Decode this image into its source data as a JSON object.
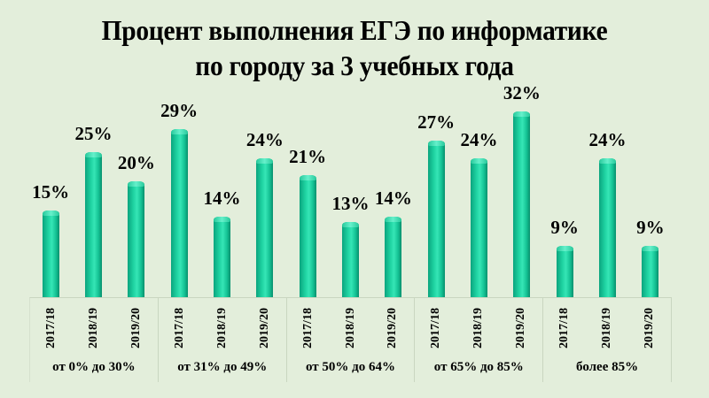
{
  "title": {
    "line1": "Процент выполнения ЕГЭ по информатике",
    "line2": "по городу за 3 учебных года"
  },
  "colors": {
    "background": "#e3eedb",
    "bar": "#1fd3a2",
    "text": "#000000"
  },
  "groups": [
    {
      "label": "от 0% до 30%",
      "years": [
        "2017/18",
        "2018/19",
        "2019/20"
      ],
      "values": [
        "15%",
        "25%",
        "20%"
      ]
    },
    {
      "label": "от 31% до 49%",
      "years": [
        "2017/18",
        "2018/19",
        "2019/20"
      ],
      "values": [
        "29%",
        "14%",
        "24%"
      ]
    },
    {
      "label": "от 50% до 64%",
      "years": [
        "2017/18",
        "2018/19",
        "2019/20"
      ],
      "values": [
        "21%",
        "13%",
        "14%"
      ]
    },
    {
      "label": "от 65% до 85%",
      "years": [
        "2017/18",
        "2018/19",
        "2019/20"
      ],
      "values": [
        "27%",
        "24%",
        "32%"
      ]
    },
    {
      "label": "более 85%",
      "years": [
        "2017/18",
        "2018/19",
        "2019/20"
      ],
      "values": [
        "9%",
        "24%",
        "9%"
      ]
    }
  ],
  "chart_data": {
    "type": "bar",
    "title": "Процент выполнения ЕГЭ по информатике по городу за 3 учебных года",
    "xlabel": "",
    "ylabel": "",
    "categories": [
      "от 0% до 30%",
      "от 31% до 49%",
      "от 50% до 64%",
      "от 65% до 85%",
      "более 85%"
    ],
    "subcategories": [
      "2017/18",
      "2018/19",
      "2019/20"
    ],
    "series": [
      {
        "name": "2017/18",
        "values": [
          15,
          29,
          21,
          27,
          9
        ]
      },
      {
        "name": "2018/19",
        "values": [
          25,
          14,
          13,
          24,
          24
        ]
      },
      {
        "name": "2019/20",
        "values": [
          20,
          24,
          14,
          32,
          9
        ]
      }
    ],
    "value_format": "percent",
    "data_labels": true,
    "grid": false,
    "legend": "none",
    "ylim": [
      0,
      32
    ]
  }
}
